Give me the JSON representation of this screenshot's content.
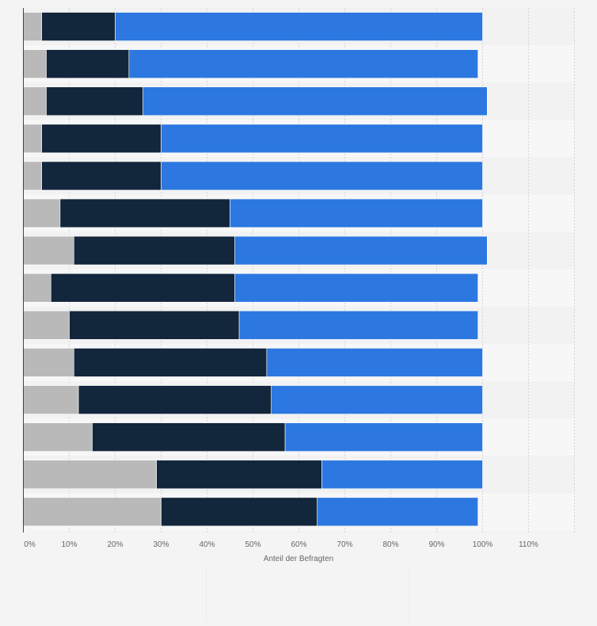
{
  "chart_data": {
    "type": "bar",
    "orientation": "horizontal",
    "stacked": true,
    "xlabel": "Anteil der Befragten",
    "xlim": [
      0,
      120
    ],
    "x_ticks": [
      "0%",
      "10%",
      "20%",
      "30%",
      "40%",
      "50%",
      "60%",
      "70%",
      "80%",
      "90%",
      "100%",
      "110%"
    ],
    "grid": true,
    "legend": "none",
    "series": [
      {
        "color": "#b9b9b9",
        "values": [
          4,
          5,
          5,
          4,
          4,
          8,
          11,
          6,
          10,
          11,
          12,
          15,
          29,
          30
        ]
      },
      {
        "color": "#12263c",
        "values": [
          16,
          18,
          21,
          26,
          26,
          37,
          35,
          40,
          37,
          42,
          42,
          42,
          36,
          34
        ]
      },
      {
        "color": "#2c78e0",
        "values": [
          80,
          76,
          75,
          70,
          70,
          55,
          55,
          53,
          52,
          47,
          46,
          43,
          35,
          35
        ]
      }
    ]
  }
}
